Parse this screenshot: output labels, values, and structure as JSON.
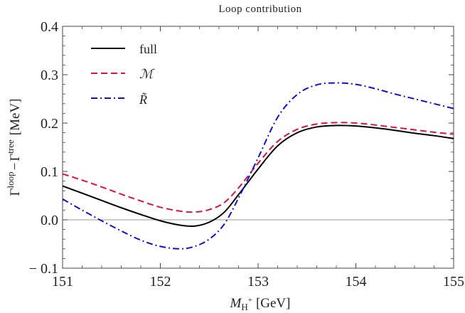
{
  "chart_data": {
    "type": "line",
    "title": "Loop contribution",
    "xlabel": {
      "main": "M",
      "sub": "H",
      "sup": "+",
      "unit": "[GeV]"
    },
    "ylabel": {
      "gamma1": "Γ",
      "sup1": "loop",
      "minus": "−",
      "gamma2": "Γ",
      "sup2": "tree",
      "unit": "[MeV]"
    },
    "xlim": [
      151,
      155
    ],
    "ylim": [
      -0.1,
      0.4
    ],
    "xticks": [
      151,
      152,
      153,
      154,
      155
    ],
    "xtick_labels": [
      "151",
      "152",
      "153",
      "154",
      "155"
    ],
    "yticks": [
      -0.1,
      0.0,
      0.1,
      0.2,
      0.3,
      0.4
    ],
    "ytick_labels": [
      "− 0.1",
      "0.0",
      "0.1",
      "0.2",
      "0.3",
      "0.4"
    ],
    "zero_line": 0.0,
    "legend_position": "top-left",
    "series": [
      {
        "name": "full",
        "color": "#000000",
        "dash": "solid",
        "x": [
          151.0,
          151.2,
          151.4,
          151.6,
          151.8,
          152.0,
          152.2,
          152.35,
          152.5,
          152.65,
          152.8,
          153.0,
          153.2,
          153.4,
          153.6,
          153.8,
          154.0,
          154.2,
          154.4,
          154.6,
          154.8,
          155.0
        ],
        "y": [
          0.07,
          0.055,
          0.04,
          0.025,
          0.011,
          -0.002,
          -0.011,
          -0.013,
          -0.005,
          0.015,
          0.052,
          0.105,
          0.153,
          0.18,
          0.192,
          0.195,
          0.194,
          0.19,
          0.185,
          0.179,
          0.174,
          0.168
        ]
      },
      {
        "name": "ℳ",
        "color": "#dd1144",
        "dash": "dashed",
        "x": [
          151.0,
          151.2,
          151.4,
          151.6,
          151.8,
          152.0,
          152.2,
          152.35,
          152.5,
          152.65,
          152.8,
          153.0,
          153.2,
          153.4,
          153.6,
          153.8,
          154.0,
          154.2,
          154.4,
          154.6,
          154.8,
          155.0
        ],
        "y": [
          0.095,
          0.082,
          0.068,
          0.053,
          0.039,
          0.026,
          0.018,
          0.016,
          0.021,
          0.035,
          0.066,
          0.117,
          0.162,
          0.187,
          0.198,
          0.201,
          0.2,
          0.196,
          0.191,
          0.186,
          0.181,
          0.177
        ]
      },
      {
        "name": "R̃",
        "color": "#1010cc",
        "dash": "dashdot",
        "x": [
          151.0,
          151.2,
          151.4,
          151.6,
          151.8,
          152.0,
          152.2,
          152.35,
          152.5,
          152.65,
          152.8,
          153.0,
          153.2,
          153.4,
          153.6,
          153.8,
          154.0,
          154.2,
          154.4,
          154.6,
          154.8,
          155.0
        ],
        "y": [
          0.043,
          0.02,
          -0.002,
          -0.023,
          -0.042,
          -0.055,
          -0.06,
          -0.055,
          -0.04,
          -0.01,
          0.045,
          0.128,
          0.212,
          0.259,
          0.279,
          0.283,
          0.28,
          0.271,
          0.26,
          0.25,
          0.24,
          0.23
        ]
      }
    ]
  }
}
